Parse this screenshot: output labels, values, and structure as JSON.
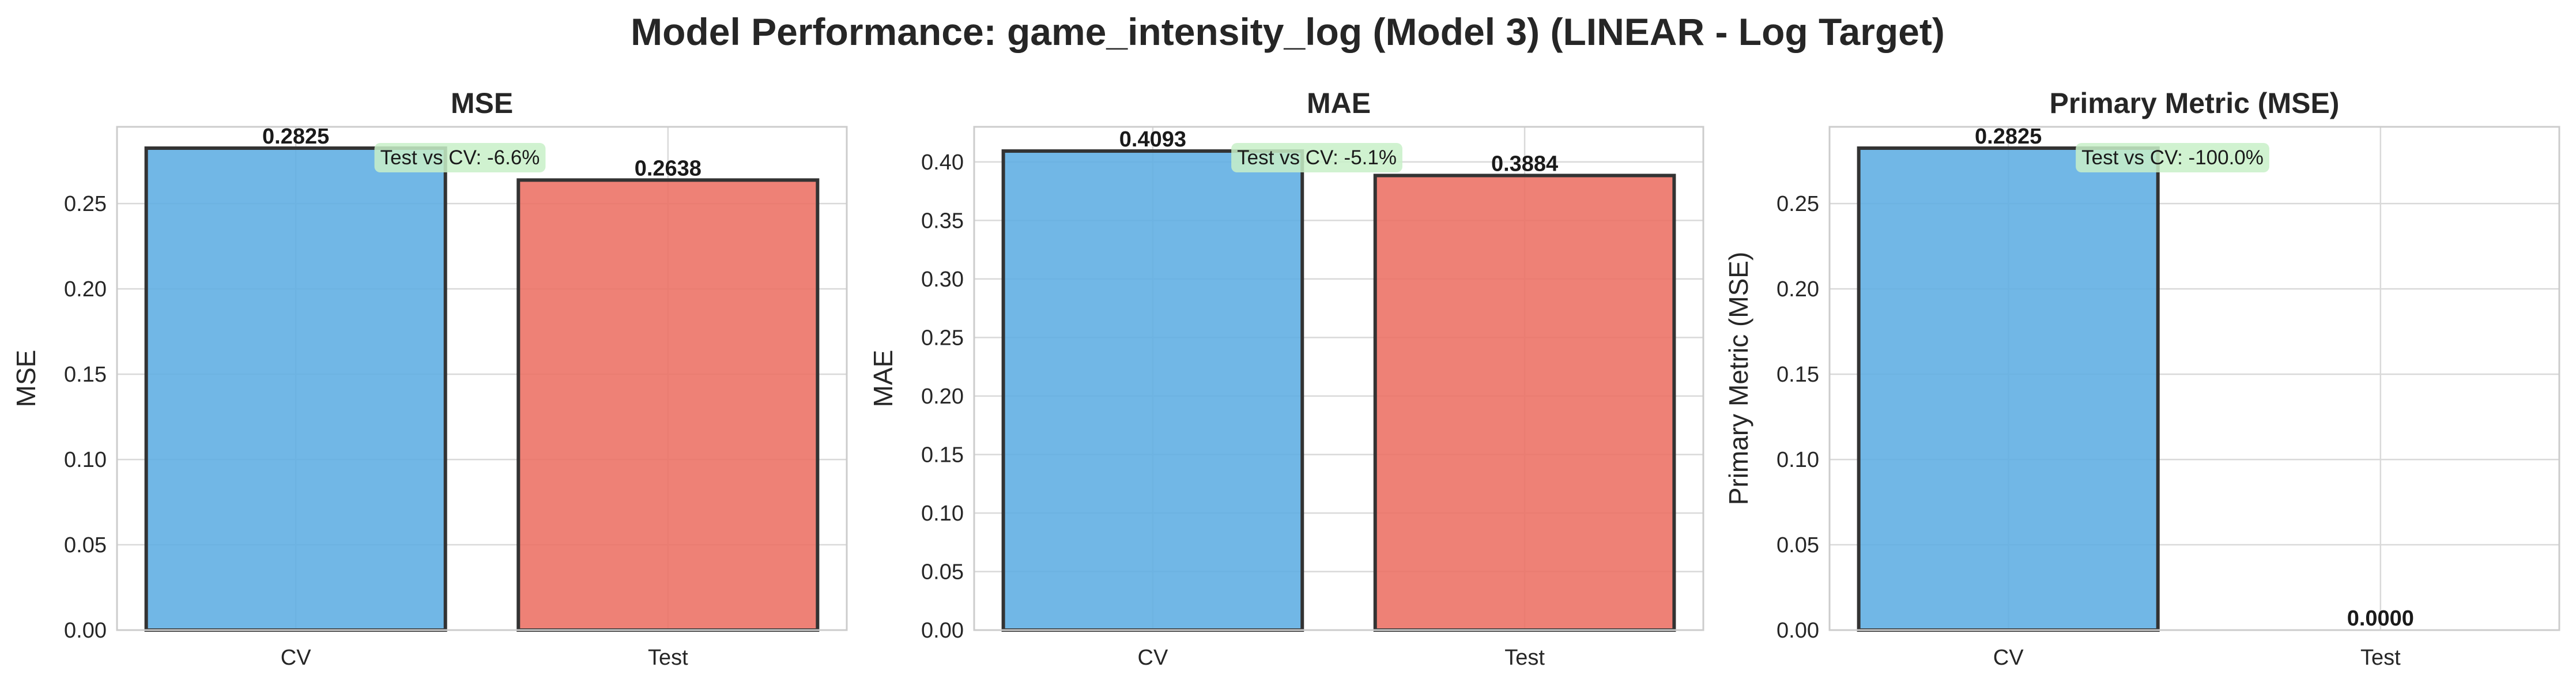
{
  "title": "Model Performance: game_intensity_log (Model 3) (LINEAR - Log Target)",
  "colors": {
    "cv": "#5DADE2",
    "test": "#EC7063",
    "annotation_bg": "#C8F0C8",
    "grid": "#D9D9D9",
    "axes": "#CCCCCC"
  },
  "chart_data": [
    {
      "type": "bar",
      "title": "MSE",
      "ylabel": "MSE",
      "categories": [
        "CV",
        "Test"
      ],
      "values": [
        0.2825,
        0.2638
      ],
      "value_labels": [
        "0.2825",
        "0.2638"
      ],
      "ylim": [
        0,
        0.295
      ],
      "yticks": [
        0,
        0.05,
        0.1,
        0.15,
        0.2,
        0.25
      ],
      "ytick_labels": [
        "0.00",
        "0.05",
        "0.10",
        "0.15",
        "0.20",
        "0.25"
      ],
      "annotation": "Test vs CV: -6.6%",
      "grid": true
    },
    {
      "type": "bar",
      "title": "MAE",
      "ylabel": "MAE",
      "categories": [
        "CV",
        "Test"
      ],
      "values": [
        0.4093,
        0.3884
      ],
      "value_labels": [
        "0.4093",
        "0.3884"
      ],
      "ylim": [
        0,
        0.43
      ],
      "yticks": [
        0,
        0.05,
        0.1,
        0.15,
        0.2,
        0.25,
        0.3,
        0.35,
        0.4
      ],
      "ytick_labels": [
        "0.00",
        "0.05",
        "0.10",
        "0.15",
        "0.20",
        "0.25",
        "0.30",
        "0.35",
        "0.40"
      ],
      "annotation": "Test vs CV: -5.1%",
      "grid": true
    },
    {
      "type": "bar",
      "title": "Primary Metric (MSE)",
      "ylabel": "Primary Metric (MSE)",
      "categories": [
        "CV",
        "Test"
      ],
      "values": [
        0.2825,
        0.0
      ],
      "value_labels": [
        "0.2825",
        "0.0000"
      ],
      "ylim": [
        0,
        0.295
      ],
      "yticks": [
        0,
        0.05,
        0.1,
        0.15,
        0.2,
        0.25
      ],
      "ytick_labels": [
        "0.00",
        "0.05",
        "0.10",
        "0.15",
        "0.20",
        "0.25"
      ],
      "annotation": "Test vs CV: -100.0%",
      "grid": true
    }
  ]
}
